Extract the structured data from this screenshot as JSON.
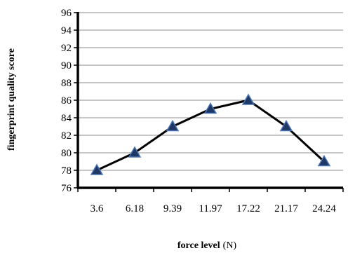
{
  "chart_data": {
    "type": "line",
    "categories": [
      "3.6",
      "6.18",
      "9.39",
      "11.97",
      "17.22",
      "21.17",
      "24.24"
    ],
    "values": [
      78,
      80,
      83,
      85,
      86,
      83,
      79
    ],
    "ylim": [
      76,
      96
    ],
    "ytick_step": 2,
    "yticks": [
      "76",
      "78",
      "80",
      "82",
      "84",
      "86",
      "88",
      "90",
      "92",
      "94",
      "96"
    ],
    "ylabel": "fingerprint quality score",
    "xlabel_bold": "force level",
    "xlabel_unit": "(N)",
    "grid": true,
    "marker": "triangle",
    "colors": {
      "line": "#000000",
      "marker_fill": "#1F3864",
      "marker_edge": "#4A74B4",
      "grid": "#8C8C8C",
      "axis": "#000000"
    }
  }
}
